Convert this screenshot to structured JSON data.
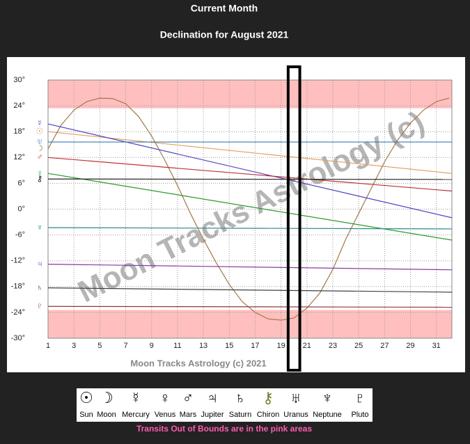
{
  "header": {
    "title": "Current Month"
  },
  "chart_data": {
    "type": "line",
    "title": "Declination for August 2021",
    "credit": "Moon Tracks Astrology (c) 2021",
    "watermark": "Moon Tracks Astrology (c)",
    "xlim": [
      1,
      32.2
    ],
    "ylim": [
      -30,
      30
    ],
    "xticks": [
      1,
      3,
      5,
      7,
      9,
      11,
      13,
      15,
      17,
      19,
      21,
      23,
      25,
      27,
      29,
      31
    ],
    "yticks": [
      {
        "value": -30,
        "label": "-30°"
      },
      {
        "value": -24,
        "label": "-24°"
      },
      {
        "value": -18,
        "label": "-18°"
      },
      {
        "value": -12,
        "label": "-12°"
      },
      {
        "value": -6,
        "label": "-6°"
      },
      {
        "value": 0,
        "label": "0°"
      },
      {
        "value": 6,
        "label": "6°"
      },
      {
        "value": 12,
        "label": "12°"
      },
      {
        "value": 18,
        "label": "18°"
      },
      {
        "value": 24,
        "label": "24°"
      },
      {
        "value": 30,
        "label": "30°"
      }
    ],
    "grid": true,
    "out_of_bounds": 23.44,
    "highlight_day": 20,
    "series": [
      {
        "name": "Sun",
        "symbol": "☉",
        "color": "#e0a060",
        "x": [
          1,
          32.2
        ],
        "values": [
          18,
          8.3
        ]
      },
      {
        "name": "Moon",
        "symbol": "☽",
        "color": "#a0784a",
        "x": [
          1,
          2,
          3,
          4,
          5,
          6,
          7,
          8,
          9,
          10,
          11,
          12,
          13,
          14,
          15,
          16,
          17,
          18,
          19,
          20,
          21,
          22,
          23,
          24,
          25,
          26,
          27,
          28,
          29,
          30,
          31,
          32
        ],
        "values": [
          14,
          19.5,
          23,
          25,
          25.8,
          25.7,
          24.5,
          21.5,
          17,
          11.5,
          5.5,
          -1,
          -7,
          -12.5,
          -17.5,
          -21.5,
          -24,
          -25.5,
          -25.8,
          -25.3,
          -23,
          -19.5,
          -14,
          -7,
          -1,
          5,
          11,
          16,
          20,
          23,
          25,
          25.8
        ]
      },
      {
        "name": "Mercury",
        "symbol": "☿",
        "color": "#5040c0",
        "x": [
          1,
          32.2
        ],
        "values": [
          19.8,
          -2
        ]
      },
      {
        "name": "Venus",
        "symbol": "♀",
        "color": "#2a9a2a",
        "x": [
          1,
          32.2
        ],
        "values": [
          8.3,
          -7.2
        ]
      },
      {
        "name": "Mars",
        "symbol": "♂",
        "color": "#c03030",
        "x": [
          1,
          32.2
        ],
        "values": [
          12,
          4.2
        ]
      },
      {
        "name": "Jupiter",
        "symbol": "♃",
        "color": "#8a3aa0",
        "x": [
          1,
          32.2
        ],
        "values": [
          -12.8,
          -14.1
        ]
      },
      {
        "name": "Saturn",
        "symbol": "♄",
        "color": "#404040",
        "x": [
          1,
          32.2
        ],
        "values": [
          -18.3,
          -19.3
        ]
      },
      {
        "name": "Chiron",
        "symbol": "⚷",
        "color": "#202020",
        "x": [
          1,
          32.2
        ],
        "values": [
          7.0,
          6.9
        ]
      },
      {
        "name": "Uranus",
        "symbol": "♅",
        "color": "#3a7ab8",
        "x": [
          1,
          32.2
        ],
        "values": [
          15.6,
          15.6
        ]
      },
      {
        "name": "Neptune",
        "symbol": "♆",
        "color": "#2a8a8a",
        "x": [
          1,
          32.2
        ],
        "values": [
          -4.3,
          -4.6
        ]
      },
      {
        "name": "Pluto",
        "symbol": "♇",
        "color": "#8a3a3a",
        "x": [
          1,
          32.2
        ],
        "values": [
          -22.6,
          -22.8
        ]
      }
    ]
  },
  "footer": {
    "note": "Transits Out of Bounds are in the pink areas"
  }
}
